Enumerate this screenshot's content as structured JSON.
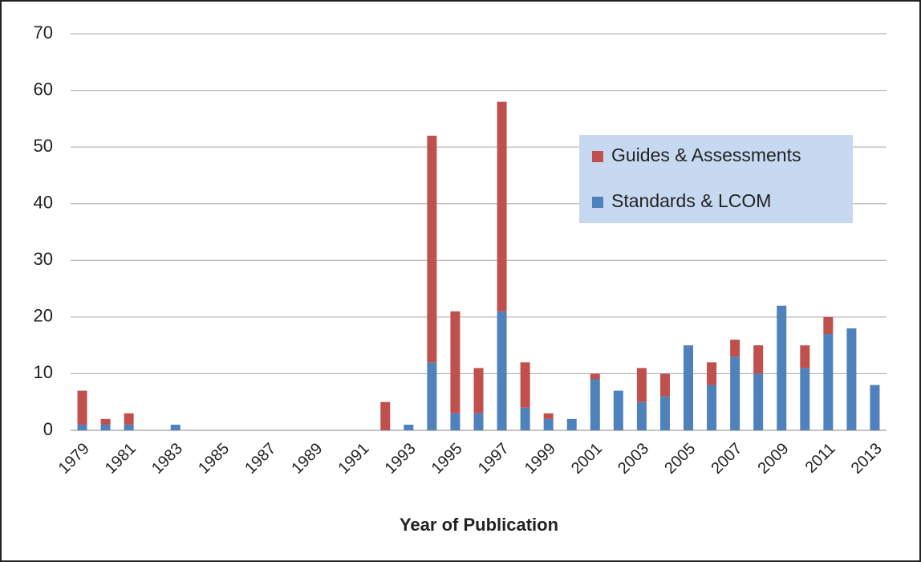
{
  "chart_data": {
    "type": "stacked_bar",
    "xlabel": "Year of Publication",
    "categories": [
      "1979",
      null,
      "1981",
      null,
      "1983",
      null,
      "1985",
      null,
      "1987",
      null,
      "1989",
      null,
      "1991",
      null,
      "1993",
      null,
      "1995",
      null,
      "1997",
      null,
      "1999",
      null,
      "2001",
      null,
      "2003",
      null,
      "2005",
      null,
      "2007",
      null,
      "2009",
      null,
      "2011",
      null,
      "2013"
    ],
    "series": [
      {
        "name": "Standards & LCOM",
        "color": "#4f81bd",
        "values": [
          1,
          1,
          1,
          0,
          1,
          0,
          0,
          0,
          0,
          0,
          0,
          0,
          0,
          0,
          1,
          12,
          3,
          3,
          21,
          4,
          2,
          2,
          9,
          7,
          5,
          6,
          15,
          8,
          13,
          10,
          22,
          11,
          17,
          18,
          8
        ]
      },
      {
        "name": "Guides & Assessments",
        "color": "#c0504d",
        "values": [
          6,
          1,
          2,
          0,
          0,
          0,
          0,
          0,
          0,
          0,
          0,
          0,
          0,
          5,
          0,
          40,
          18,
          8,
          37,
          8,
          1,
          0,
          1,
          0,
          6,
          4,
          0,
          4,
          3,
          5,
          0,
          4,
          3,
          0,
          0
        ]
      }
    ],
    "ylim": [
      0,
      70
    ],
    "yticks": [
      0,
      10,
      20,
      30,
      40,
      50,
      60,
      70
    ],
    "grid": true,
    "legend": "upper right"
  }
}
